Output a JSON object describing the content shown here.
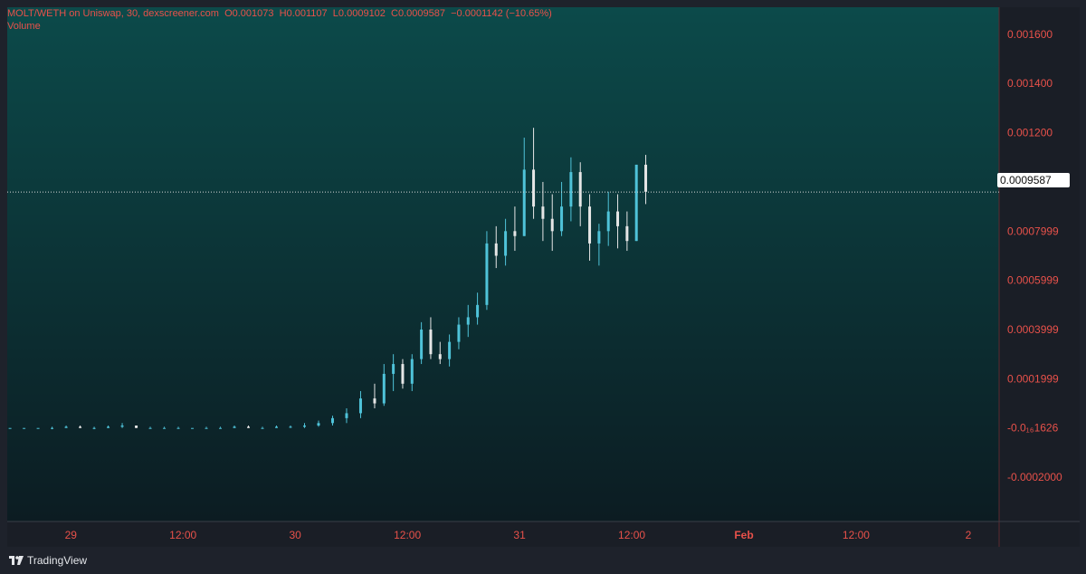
{
  "header": {
    "symbol": "MOLT/WETH on Uniswap, 30, dexscreener.com",
    "o_label": "O",
    "o_value": "0.001073",
    "h_label": "H",
    "h_value": "0.001107",
    "l_label": "L",
    "l_value": "0.0009102",
    "c_label": "C",
    "c_value": "0.0009587",
    "change": "−0.0001142 (−10.65%)",
    "volume_label": "Volume"
  },
  "price_tag": "0.0009587",
  "branding": {
    "name": "TradingView",
    "icon": "tradingview-logo-icon"
  },
  "colors": {
    "bg_top": "#0c4a4a",
    "bg_bottom": "#0c1c22",
    "axis_text": "#e8514a",
    "candle_up": "#4fc3d9",
    "candle_down": "#e6e6e6",
    "last_price_line": "#d8d8d8"
  },
  "chart_data": {
    "type": "candlestick",
    "title": "MOLT/WETH on Uniswap, 30, dexscreener.com",
    "y_tick_labels": [
      "0.001600",
      "0.001400",
      "0.001200",
      "0.0009999",
      "0.0007999",
      "0.0005999",
      "0.0003999",
      "0.0001999",
      "-0.0₁₆1626",
      "-0.0002000"
    ],
    "y_tick_values": [
      0.0016,
      0.0014,
      0.0012,
      0.0009999,
      0.0007999,
      0.0005999,
      0.0003999,
      0.0001999,
      0.0,
      -0.0002
    ],
    "x_tick_labels": [
      "29",
      "12:00",
      "30",
      "12:00",
      "31",
      "12:00",
      "Feb",
      "12:00",
      "2"
    ],
    "x_tick_values": [
      0,
      12,
      24,
      36,
      48,
      60,
      72,
      84,
      96
    ],
    "x_unit": "hours since Jan 29 00:00",
    "ylim": [
      -0.00038,
      0.00171
    ],
    "xlim": [
      -6.8,
      99.3
    ],
    "last_price": 0.0009587,
    "candles": [
      [
        -6.5,
        0,
        0,
        0,
        0
      ],
      [
        -5,
        0,
        0,
        0,
        0
      ],
      [
        -3.5,
        0,
        0,
        0,
        0
      ],
      [
        -2,
        0,
        5e-06,
        -5e-06,
        0
      ],
      [
        -0.5,
        0,
        1e-05,
        0,
        5e-06
      ],
      [
        1,
        5e-06,
        1e-05,
        0,
        0
      ],
      [
        2.5,
        0,
        5e-06,
        -5e-06,
        0
      ],
      [
        4,
        0,
        1e-05,
        0,
        5e-06
      ],
      [
        5.5,
        5e-06,
        2e-05,
        0,
        1e-05
      ],
      [
        7,
        1e-05,
        1e-05,
        0,
        0
      ],
      [
        8.5,
        0,
        5e-06,
        0,
        0
      ],
      [
        10,
        0,
        5e-06,
        0,
        0
      ],
      [
        11.5,
        0,
        5e-06,
        0,
        0
      ],
      [
        13,
        0,
        0,
        0,
        0
      ],
      [
        14.5,
        0,
        5e-06,
        0,
        0
      ],
      [
        16,
        0,
        5e-06,
        0,
        0
      ],
      [
        17.5,
        0,
        1e-05,
        0,
        5e-06
      ],
      [
        19,
        5e-06,
        1e-05,
        0,
        0
      ],
      [
        20.5,
        0,
        5e-06,
        0,
        0
      ],
      [
        22,
        0,
        1e-05,
        0,
        5e-06
      ],
      [
        23.5,
        5e-06,
        1e-05,
        0,
        5e-06
      ],
      [
        25,
        5e-06,
        2e-05,
        0,
        1e-05
      ],
      [
        26.5,
        1e-05,
        3e-05,
        5e-06,
        2e-05
      ],
      [
        28,
        2e-05,
        5e-05,
        1e-05,
        4e-05
      ],
      [
        29.5,
        4e-05,
        8e-05,
        2e-05,
        6e-05
      ],
      [
        31,
        6e-05,
        0.00015,
        4e-05,
        0.00012
      ],
      [
        32.5,
        0.00012,
        0.00018,
        8e-05,
        0.0001
      ],
      [
        33.5,
        0.0001,
        0.00026,
        9e-05,
        0.00022
      ],
      [
        34.5,
        0.00022,
        0.0003,
        0.00015,
        0.00026
      ],
      [
        35.5,
        0.00026,
        0.00028,
        0.00016,
        0.00018
      ],
      [
        36.5,
        0.00018,
        0.0003,
        0.00015,
        0.00028
      ],
      [
        37.5,
        0.00028,
        0.00043,
        0.00026,
        0.0004
      ],
      [
        38.5,
        0.0004,
        0.00045,
        0.00028,
        0.0003
      ],
      [
        39.5,
        0.0003,
        0.00035,
        0.00026,
        0.00028
      ],
      [
        40.5,
        0.00028,
        0.00038,
        0.00025,
        0.00035
      ],
      [
        41.5,
        0.00035,
        0.00045,
        0.00032,
        0.00042
      ],
      [
        42.5,
        0.00042,
        0.0005,
        0.00037,
        0.00045
      ],
      [
        43.5,
        0.00045,
        0.00055,
        0.00042,
        0.0005
      ],
      [
        44.5,
        0.0005,
        0.0008,
        0.00048,
        0.00075
      ],
      [
        45.5,
        0.00075,
        0.00082,
        0.00065,
        0.0007
      ],
      [
        46.5,
        0.0007,
        0.00085,
        0.00066,
        0.0008
      ],
      [
        47.5,
        0.0008,
        0.0009,
        0.00072,
        0.00078
      ],
      [
        48.5,
        0.00078,
        0.00118,
        0.00078,
        0.00105
      ],
      [
        49.5,
        0.00105,
        0.00122,
        0.00085,
        0.0009
      ],
      [
        50.5,
        0.0009,
        0.001,
        0.00076,
        0.00085
      ],
      [
        51.5,
        0.00085,
        0.00095,
        0.00072,
        0.0008
      ],
      [
        52.5,
        0.0008,
        0.001,
        0.00078,
        0.0009
      ],
      [
        53.5,
        0.0009,
        0.0011,
        0.00084,
        0.00104
      ],
      [
        54.5,
        0.00104,
        0.00108,
        0.00082,
        0.0009
      ],
      [
        55.5,
        0.0009,
        0.00095,
        0.00068,
        0.00075
      ],
      [
        56.5,
        0.00075,
        0.00083,
        0.00066,
        0.0008
      ],
      [
        57.5,
        0.0008,
        0.00096,
        0.00074,
        0.00088
      ],
      [
        58.5,
        0.00088,
        0.00095,
        0.00073,
        0.00082
      ],
      [
        59.5,
        0.00082,
        0.00088,
        0.00072,
        0.00076
      ],
      [
        60.5,
        0.00076,
        0.00107,
        0.00076,
        0.00107
      ],
      [
        61.5,
        0.00107,
        0.00111,
        0.00091,
        0.00096
      ]
    ]
  }
}
